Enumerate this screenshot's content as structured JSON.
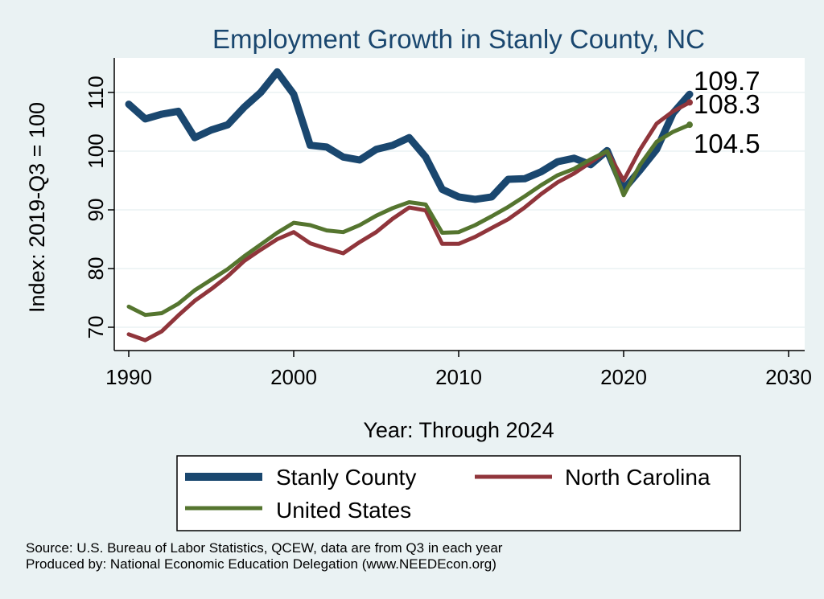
{
  "chart_data": {
    "type": "line",
    "title": "Employment Growth in Stanly County, NC",
    "xlabel": "Year: Through 2024",
    "ylabel": "Index: 2019-Q3 = 100",
    "xlim": [
      1990,
      2030
    ],
    "ylim": [
      65,
      115
    ],
    "xticks": [
      1990,
      2000,
      2010,
      2020,
      2030
    ],
    "yticks": [
      70,
      80,
      90,
      100,
      110
    ],
    "grid": true,
    "legend_position": "bottom",
    "x": [
      1990,
      1991,
      1992,
      1993,
      1994,
      1995,
      1996,
      1997,
      1998,
      1999,
      2000,
      2001,
      2002,
      2003,
      2004,
      2005,
      2006,
      2007,
      2008,
      2009,
      2010,
      2011,
      2012,
      2013,
      2014,
      2015,
      2016,
      2017,
      2018,
      2019,
      2020,
      2021,
      2022,
      2023,
      2024
    ],
    "series": [
      {
        "name": "Stanly  County",
        "color": "#1a476f",
        "values": [
          108.0,
          105.5,
          106.3,
          106.8,
          102.3,
          103.6,
          104.5,
          107.5,
          110.0,
          113.5,
          109.7,
          101.0,
          100.7,
          99.0,
          98.5,
          100.3,
          101.0,
          102.3,
          99.0,
          93.5,
          92.2,
          91.8,
          92.2,
          95.2,
          95.3,
          96.5,
          98.2,
          98.8,
          97.7,
          100.1,
          93.5,
          96.8,
          100.3,
          106.5,
          109.7
        ],
        "end_label": "109.7"
      },
      {
        "name": "North Carolina",
        "color": "#90353b",
        "values": [
          68.8,
          67.8,
          69.3,
          72.0,
          74.5,
          76.5,
          78.7,
          81.3,
          83.2,
          85.0,
          86.2,
          84.3,
          83.4,
          82.6,
          84.5,
          86.2,
          88.5,
          90.4,
          89.9,
          84.2,
          84.2,
          85.4,
          86.9,
          88.4,
          90.4,
          92.7,
          94.7,
          96.2,
          98.1,
          100.0,
          95.0,
          100.3,
          104.7,
          106.8,
          108.3
        ],
        "end_label": "108.3"
      },
      {
        "name": "United States",
        "color": "#55752f",
        "values": [
          73.5,
          72.1,
          72.4,
          74.0,
          76.3,
          78.1,
          79.9,
          82.1,
          84.1,
          86.1,
          87.8,
          87.4,
          86.5,
          86.2,
          87.4,
          89.0,
          90.3,
          91.3,
          90.9,
          86.1,
          86.2,
          87.4,
          88.9,
          90.5,
          92.3,
          94.2,
          95.9,
          97.0,
          98.6,
          100.0,
          92.5,
          97.7,
          101.6,
          103.3,
          104.5
        ],
        "end_label": "104.5"
      }
    ],
    "source_lines": [
      "Source: U.S. Bureau of Labor Statistics, QCEW, data are from Q3 in each year",
      "Produced by: National Economic Education Delegation (www.NEEDEcon.org)"
    ]
  }
}
